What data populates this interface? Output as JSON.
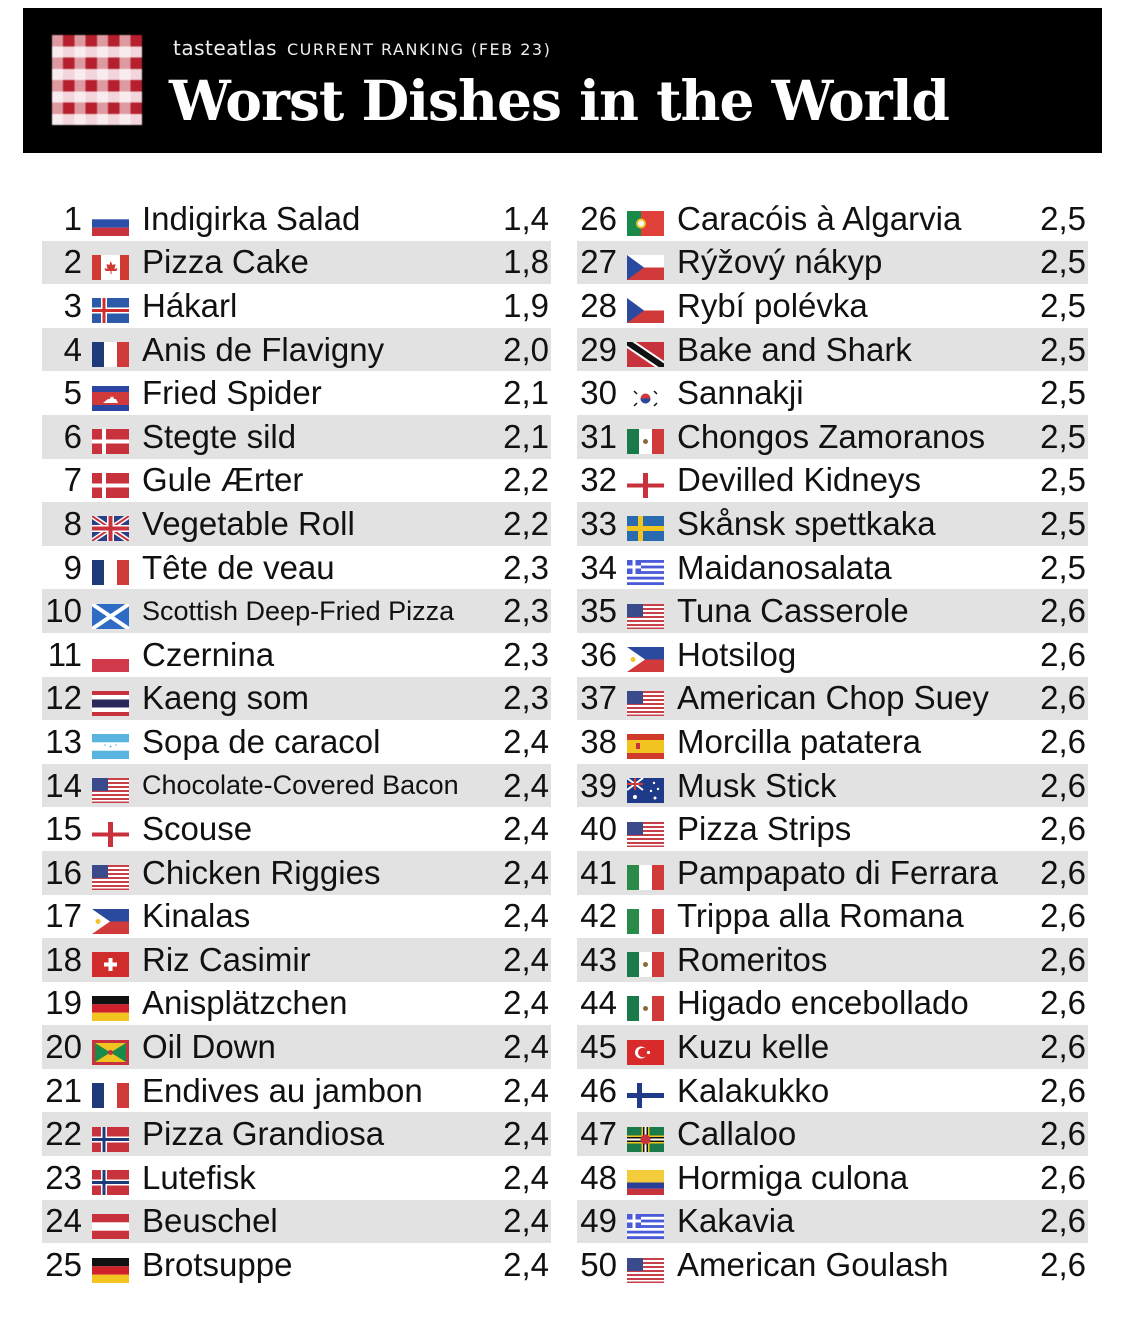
{
  "header": {
    "brand": "tasteatlas",
    "subtitle": "CURRENT RANKING (FEB 23)",
    "title": "Worst Dishes in the World",
    "logo": "red-gingham-checkered-icon"
  },
  "colors": {
    "header_bg": "#000000",
    "stripe": "#e2e2e2",
    "logo_red": "#b51f2e"
  },
  "left": [
    {
      "rank": "1",
      "flag": "russia",
      "name": "Indigirka Salad",
      "score": "1,4"
    },
    {
      "rank": "2",
      "flag": "canada",
      "name": "Pizza Cake",
      "score": "1,8"
    },
    {
      "rank": "3",
      "flag": "iceland",
      "name": "Hákarl",
      "score": "1,9"
    },
    {
      "rank": "4",
      "flag": "france",
      "name": "Anis de Flavigny",
      "score": "2,0"
    },
    {
      "rank": "5",
      "flag": "cambodia",
      "name": "Fried Spider",
      "score": "2,1"
    },
    {
      "rank": "6",
      "flag": "denmark",
      "name": "Stegte sild",
      "score": "2,1"
    },
    {
      "rank": "7",
      "flag": "denmark",
      "name": "Gule Ærter",
      "score": "2,2"
    },
    {
      "rank": "8",
      "flag": "uk",
      "name": "Vegetable Roll",
      "score": "2,2"
    },
    {
      "rank": "9",
      "flag": "france",
      "name": "Tête de veau",
      "score": "2,3"
    },
    {
      "rank": "10",
      "flag": "scotland",
      "name": "Scottish Deep-Fried Pizza",
      "score": "2,3"
    },
    {
      "rank": "11",
      "flag": "poland",
      "name": "Czernina",
      "score": "2,3"
    },
    {
      "rank": "12",
      "flag": "thailand",
      "name": "Kaeng som",
      "score": "2,3"
    },
    {
      "rank": "13",
      "flag": "honduras",
      "name": "Sopa de caracol",
      "score": "2,4"
    },
    {
      "rank": "14",
      "flag": "usa",
      "name": "Chocolate-Covered Bacon",
      "score": "2,4"
    },
    {
      "rank": "15",
      "flag": "england",
      "name": "Scouse",
      "score": "2,4"
    },
    {
      "rank": "16",
      "flag": "usa",
      "name": "Chicken Riggies",
      "score": "2,4"
    },
    {
      "rank": "17",
      "flag": "philippines",
      "name": "Kinalas",
      "score": "2,4"
    },
    {
      "rank": "18",
      "flag": "switzerland",
      "name": "Riz Casimir",
      "score": "2,4"
    },
    {
      "rank": "19",
      "flag": "germany",
      "name": "Anisplätzchen",
      "score": "2,4"
    },
    {
      "rank": "20",
      "flag": "grenada",
      "name": "Oil Down",
      "score": "2,4"
    },
    {
      "rank": "21",
      "flag": "france",
      "name": "Endives au jambon",
      "score": "2,4"
    },
    {
      "rank": "22",
      "flag": "norway",
      "name": "Pizza Grandiosa",
      "score": "2,4"
    },
    {
      "rank": "23",
      "flag": "norway",
      "name": "Lutefisk",
      "score": "2,4"
    },
    {
      "rank": "24",
      "flag": "austria",
      "name": "Beuschel",
      "score": "2,4"
    },
    {
      "rank": "25",
      "flag": "germany",
      "name": "Brotsuppe",
      "score": "2,4"
    }
  ],
  "right": [
    {
      "rank": "26",
      "flag": "portugal",
      "name": "Caracóis à Algarvia",
      "score": "2,5"
    },
    {
      "rank": "27",
      "flag": "czech",
      "name": "Rýžový nákyp",
      "score": "2,5"
    },
    {
      "rank": "28",
      "flag": "czech",
      "name": "Rybí polévka",
      "score": "2,5"
    },
    {
      "rank": "29",
      "flag": "trinidad",
      "name": "Bake and Shark",
      "score": "2,5"
    },
    {
      "rank": "30",
      "flag": "south-korea",
      "name": "Sannakji",
      "score": "2,5"
    },
    {
      "rank": "31",
      "flag": "mexico",
      "name": "Chongos Zamoranos",
      "score": "2,5"
    },
    {
      "rank": "32",
      "flag": "england",
      "name": "Devilled Kidneys",
      "score": "2,5"
    },
    {
      "rank": "33",
      "flag": "sweden",
      "name": "Skånsk spettkaka",
      "score": "2,5"
    },
    {
      "rank": "34",
      "flag": "greece",
      "name": "Maidanosalata",
      "score": "2,5"
    },
    {
      "rank": "35",
      "flag": "usa",
      "name": "Tuna Casserole",
      "score": "2,6"
    },
    {
      "rank": "36",
      "flag": "philippines",
      "name": "Hotsilog",
      "score": "2,6"
    },
    {
      "rank": "37",
      "flag": "usa",
      "name": "American Chop Suey",
      "score": "2,6"
    },
    {
      "rank": "38",
      "flag": "spain",
      "name": "Morcilla patatera",
      "score": "2,6"
    },
    {
      "rank": "39",
      "flag": "australia",
      "name": "Musk Stick",
      "score": "2,6"
    },
    {
      "rank": "40",
      "flag": "usa",
      "name": "Pizza Strips",
      "score": "2,6"
    },
    {
      "rank": "41",
      "flag": "italy",
      "name": "Pampapato di Ferrara",
      "score": "2,6"
    },
    {
      "rank": "42",
      "flag": "italy",
      "name": "Trippa alla Romana",
      "score": "2,6"
    },
    {
      "rank": "43",
      "flag": "mexico",
      "name": "Romeritos",
      "score": "2,6"
    },
    {
      "rank": "44",
      "flag": "mexico",
      "name": "Higado encebollado",
      "score": "2,6"
    },
    {
      "rank": "45",
      "flag": "turkey",
      "name": "Kuzu kelle",
      "score": "2,6"
    },
    {
      "rank": "46",
      "flag": "finland",
      "name": "Kalakukko",
      "score": "2,6"
    },
    {
      "rank": "47",
      "flag": "dominica",
      "name": "Callaloo",
      "score": "2,6"
    },
    {
      "rank": "48",
      "flag": "colombia",
      "name": "Hormiga culona",
      "score": "2,6"
    },
    {
      "rank": "49",
      "flag": "greece",
      "name": "Kakavia",
      "score": "2,6"
    },
    {
      "rank": "50",
      "flag": "usa",
      "name": "American Goulash",
      "score": "2,6"
    }
  ]
}
